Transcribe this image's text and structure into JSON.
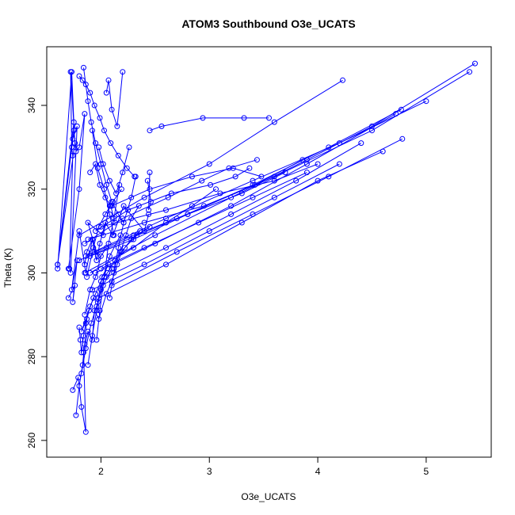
{
  "chart_data": {
    "type": "line",
    "title": "ATOM3 Southbound O3e_UCATS",
    "xlabel": "O3e_UCATS",
    "ylabel": "Theta (K)",
    "xlim": [
      1.5,
      5.6
    ],
    "ylim": [
      256,
      354
    ],
    "xticks": [
      2,
      3,
      4,
      5
    ],
    "yticks": [
      260,
      280,
      300,
      320,
      340
    ],
    "grid": false,
    "point_marker": "open-circle",
    "colors": {
      "series": "#0000ff",
      "axes": "#000000",
      "background": "#ffffff"
    },
    "series": [
      {
        "x": [
          1.6,
          1.73,
          1.75,
          1.6,
          1.76,
          1.72,
          1.73,
          1.74,
          1.71,
          1.72,
          1.78,
          1.74,
          1.6,
          1.75,
          1.77,
          1.8,
          1.85,
          1.8,
          1.7
        ],
        "y": [
          301,
          348,
          336,
          302,
          331,
          348,
          330,
          328,
          301,
          300,
          335,
          332,
          302,
          334,
          329,
          330,
          338,
          320,
          301
        ]
      },
      {
        "x": [
          1.7,
          1.76,
          1.74,
          1.78,
          1.73,
          1.8,
          1.86,
          1.92,
          1.97,
          1.88,
          2.02,
          2.08
        ],
        "y": [
          294,
          297,
          293,
          303,
          296,
          310,
          300,
          308,
          304,
          312,
          309,
          316
        ]
      },
      {
        "x": [
          1.74,
          1.79,
          1.82,
          1.86,
          1.84,
          1.88,
          1.92,
          1.94,
          1.98,
          2.05,
          2.1,
          2.15,
          2.19,
          2.28,
          2.36
        ],
        "y": [
          272,
          275,
          268,
          262,
          281,
          286,
          284,
          291,
          289,
          295,
          298,
          302,
          305,
          308,
          310
        ]
      },
      {
        "x": [
          1.77,
          1.8,
          1.83,
          1.85,
          1.87,
          1.82,
          1.9,
          1.95,
          2.0,
          2.06,
          2.13,
          2.22,
          2.33,
          2.45
        ],
        "y": [
          266,
          273,
          278,
          283,
          289,
          286,
          292,
          295,
          298,
          300,
          303,
          306,
          309,
          311
        ]
      },
      {
        "x": [
          1.8,
          1.81,
          1.82,
          1.84,
          1.86,
          1.89,
          1.93,
          1.97,
          2.01,
          2.07
        ],
        "y": [
          287,
          284,
          281,
          285,
          288,
          291,
          294,
          293,
          299,
          302
        ]
      },
      {
        "x": [
          1.85,
          1.87,
          1.92,
          1.96,
          1.99,
          2.04,
          2.11,
          2.21,
          2.4,
          2.44
        ],
        "y": [
          302,
          305,
          308,
          303,
          307,
          312,
          309,
          316,
          310,
          314
        ]
      },
      {
        "x": [
          1.8,
          1.83,
          1.86,
          1.9,
          1.94,
          1.99,
          2.03,
          2.09,
          2.16,
          2.24,
          2.31
        ],
        "y": [
          347,
          346,
          345,
          343,
          340,
          337,
          334,
          331,
          328,
          325,
          323
        ]
      },
      {
        "x": [
          1.84,
          1.88,
          1.91,
          1.95,
          2.0,
          2.05,
          2.1,
          2.16,
          2.21
        ],
        "y": [
          349,
          341,
          336,
          331,
          326,
          321,
          317,
          314,
          312
        ]
      },
      {
        "x": [
          2.05,
          2.07,
          2.1,
          2.15,
          2.2
        ],
        "y": [
          343,
          346,
          339,
          335,
          348
        ]
      },
      {
        "x": [
          1.92,
          1.97,
          2.03,
          2.08,
          2.12
        ],
        "y": [
          334,
          325,
          320,
          314,
          309
        ]
      },
      {
        "x": [
          1.9,
          1.95,
          1.99,
          2.04,
          2.09,
          2.13
        ],
        "y": [
          324,
          326,
          321,
          318,
          316,
          312
        ]
      },
      {
        "x": [
          1.98,
          2.02,
          2.08,
          2.14,
          2.2,
          2.26
        ],
        "y": [
          330,
          326,
          322,
          319,
          324,
          330
        ]
      },
      {
        "x": [
          2.45,
          2.56,
          2.94,
          3.32,
          3.55
        ],
        "y": [
          334,
          335,
          337,
          337,
          337
        ]
      },
      {
        "x": [
          2.45,
          2.44,
          2.46,
          2.43
        ],
        "y": [
          324,
          315,
          317,
          322
        ]
      },
      {
        "x": [
          1.85,
          2.2,
          2.62,
          2.93,
          3.18,
          3.44
        ],
        "y": [
          307,
          313,
          318,
          322,
          325,
          327
        ]
      },
      {
        "x": [
          1.95,
          2.25,
          2.65,
          3.01,
          3.24,
          3.37
        ],
        "y": [
          310,
          315,
          319,
          321,
          323,
          325
        ]
      },
      {
        "x": [
          1.9,
          2.3,
          2.6,
          2.84,
          3.06
        ],
        "y": [
          300,
          306,
          312,
          316,
          320
        ]
      },
      {
        "x": [
          2.1,
          2.45,
          2.84,
          3.22,
          3.48
        ],
        "y": [
          316,
          320,
          323,
          325,
          323
        ]
      },
      {
        "x": [
          1.86,
          2.3,
          2.8,
          3.3,
          3.7
        ],
        "y": [
          304,
          309,
          314,
          319,
          324
        ]
      },
      {
        "x": [
          1.88,
          2.4,
          2.95,
          3.42,
          3.86
        ],
        "y": [
          308,
          312,
          316,
          321,
          327
        ]
      },
      {
        "x": [
          2.0,
          2.6,
          3.1,
          3.6,
          4.0
        ],
        "y": [
          311,
          315,
          319,
          322,
          326
        ]
      },
      {
        "x": [
          1.8,
          2.4,
          3.0,
          3.6,
          4.23
        ],
        "y": [
          309,
          318,
          326,
          336,
          346
        ]
      },
      {
        "x": [
          1.9,
          2.3,
          2.8,
          3.4,
          4.1,
          4.77
        ],
        "y": [
          304,
          308,
          314,
          321,
          330,
          339
        ]
      },
      {
        "x": [
          1.95,
          2.5,
          3.2,
          3.9,
          4.72
        ],
        "y": [
          300,
          307,
          316,
          326,
          338
        ]
      },
      {
        "x": [
          2.05,
          2.6,
          3.2,
          3.8,
          4.4
        ],
        "y": [
          299,
          306,
          314,
          322,
          331
        ]
      },
      {
        "x": [
          1.92,
          2.4,
          3.0,
          3.6,
          4.2
        ],
        "y": [
          296,
          302,
          310,
          318,
          326
        ]
      },
      {
        "x": [
          2.1,
          2.7,
          3.4,
          4.1,
          4.78
        ],
        "y": [
          297,
          305,
          314,
          323,
          332
        ]
      },
      {
        "x": [
          1.98,
          2.6,
          3.3,
          4.0,
          4.6
        ],
        "y": [
          294,
          302,
          312,
          322,
          329
        ]
      },
      {
        "x": [
          1.85,
          2.5,
          3.2,
          3.9,
          4.5,
          5.45
        ],
        "y": [
          300,
          309,
          318,
          327,
          335,
          350
        ]
      },
      {
        "x": [
          1.8,
          2.7,
          3.6,
          4.5,
          5.4
        ],
        "y": [
          303,
          313,
          323,
          334,
          348
        ]
      },
      {
        "x": [
          1.93,
          2.6,
          3.4,
          4.2,
          5.0
        ],
        "y": [
          305,
          313,
          322,
          331,
          341
        ]
      },
      {
        "x": [
          2.0,
          2.4,
          2.9,
          3.4,
          3.9
        ],
        "y": [
          301,
          306,
          312,
          318,
          324
        ]
      },
      {
        "x": [
          1.85,
          1.9,
          1.95,
          2.0,
          2.05
        ],
        "y": [
          290,
          296,
          299,
          304,
          306
        ]
      },
      {
        "x": [
          1.82,
          1.86,
          1.91,
          1.96,
          2.02,
          2.1
        ],
        "y": [
          276,
          282,
          288,
          292,
          297,
          301
        ]
      },
      {
        "x": [
          1.88,
          1.92,
          1.96,
          2.0,
          2.08,
          2.18
        ],
        "y": [
          278,
          285,
          291,
          296,
          304,
          309
        ]
      },
      {
        "x": [
          1.96,
          1.99,
          2.03,
          2.07,
          2.12,
          2.17
        ],
        "y": [
          284,
          291,
          299,
          307,
          313,
          321
        ]
      },
      {
        "x": [
          2.08,
          2.12,
          2.16,
          2.21,
          2.28,
          2.32
        ],
        "y": [
          294,
          300,
          306,
          312,
          318,
          323
        ]
      },
      {
        "x": [
          1.87,
          1.93,
          1.98,
          2.04,
          2.11,
          2.19
        ],
        "y": [
          299,
          306,
          311,
          314,
          317,
          320
        ]
      },
      {
        "x": [
          2.12,
          2.18,
          2.23,
          2.28,
          2.35
        ],
        "y": [
          301,
          305,
          309,
          313,
          316
        ]
      }
    ]
  }
}
